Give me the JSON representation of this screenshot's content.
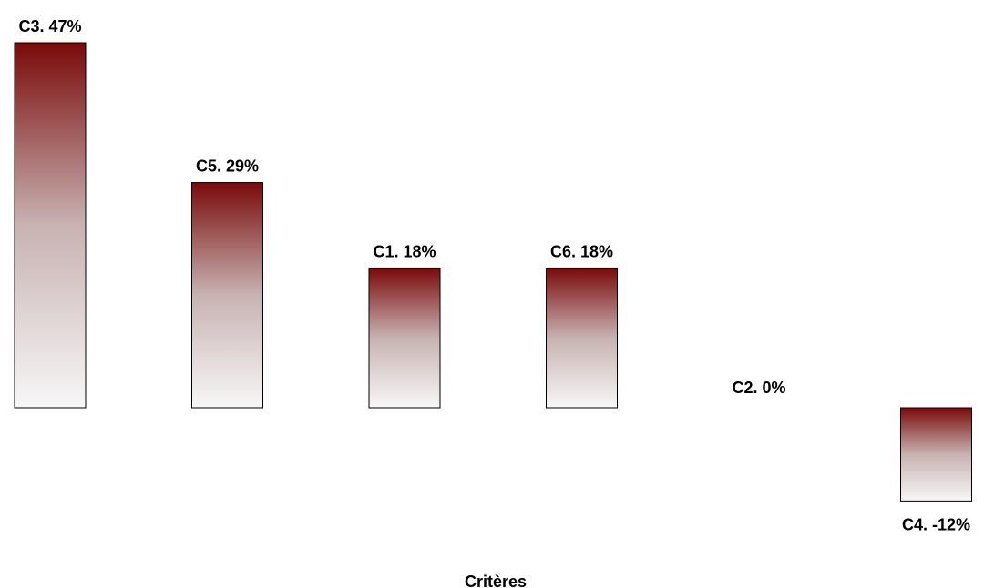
{
  "chart_data": {
    "type": "bar",
    "categories": [
      "C3",
      "C5",
      "C1",
      "C6",
      "C2",
      "C4"
    ],
    "values": [
      47,
      29,
      18,
      18,
      0,
      -12
    ],
    "data_labels": [
      "C3. 47%",
      "C5. 29%",
      "C1. 18%",
      "C6. 18%",
      "C2. 0%",
      "C4. -12%"
    ],
    "xlabel": "Critères",
    "grid": false,
    "legend": "none",
    "colors": {
      "bar_top": "#7a0a0a",
      "bar_mid": "#c8b2b2",
      "bar_bottom": "#f7f7f7",
      "bar_border": "#000000",
      "label_text": "#000000"
    }
  }
}
